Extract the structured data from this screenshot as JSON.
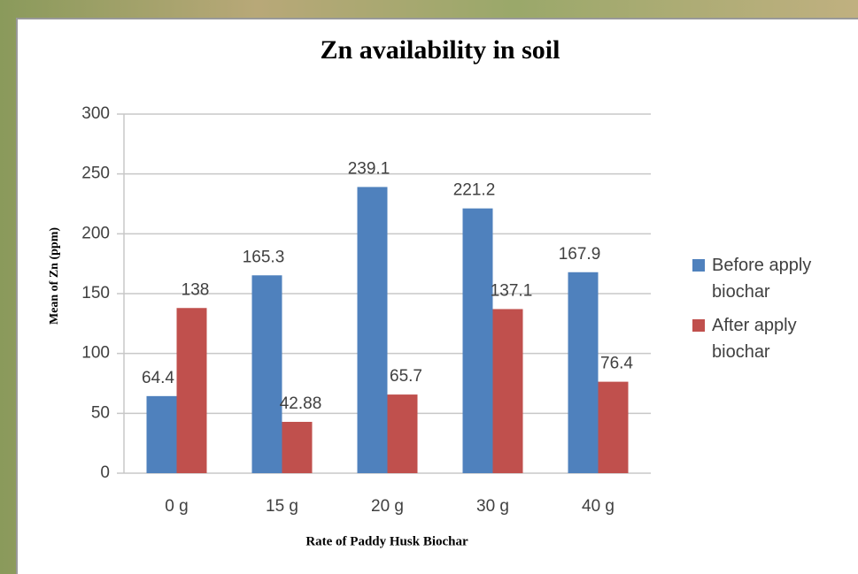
{
  "chart_data": {
    "type": "bar",
    "title": "Zn availability in soil",
    "x_label": "Rate of Paddy Husk Biochar",
    "y_label": "Mean of Zn (ppm)",
    "categories": [
      "0 g",
      "15 g",
      "20 g",
      "30 g",
      "40 g"
    ],
    "series": [
      {
        "name": "Before apply biochar",
        "color": "#4f81bd",
        "values": [
          64.4,
          165.3,
          239.1,
          221.2,
          167.9
        ]
      },
      {
        "name": "After apply biochar",
        "color": "#c0504d",
        "values": [
          138,
          42.88,
          65.7,
          137.1,
          76.4
        ]
      }
    ],
    "ylim": [
      0,
      300
    ],
    "yticks": [
      0,
      50,
      100,
      150,
      200,
      250,
      300
    ],
    "grid": true,
    "legend": "right"
  }
}
